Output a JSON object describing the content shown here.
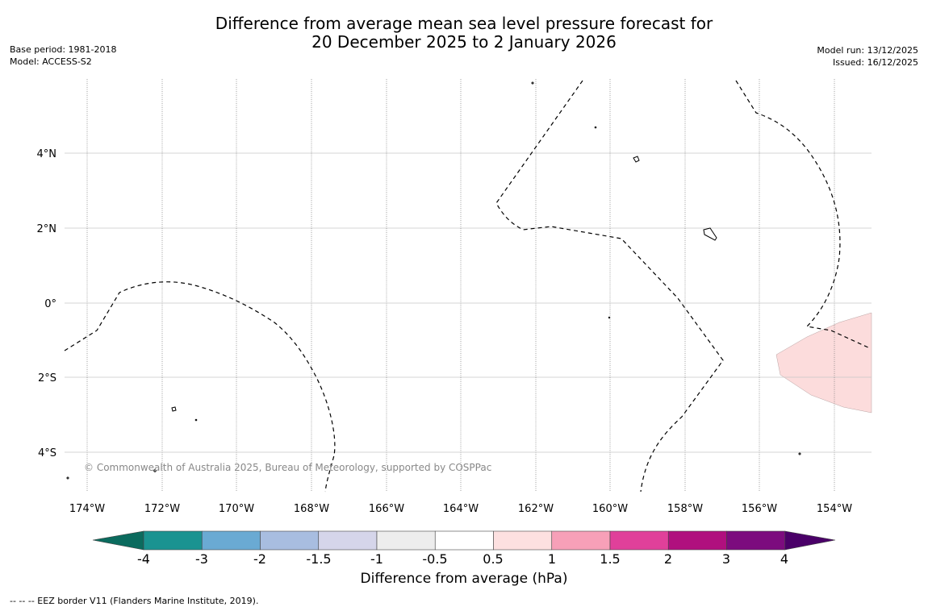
{
  "title": {
    "line1": "Difference from average mean sea level pressure forecast for",
    "line2": "20 December 2025 to 2 January 2026"
  },
  "meta": {
    "base_period": "Base period: 1981-2018",
    "model": "Model: ACCESS-S2",
    "model_run": "Model run: 13/12/2025",
    "issued": "Issued: 16/12/2025"
  },
  "map": {
    "lon_labels": [
      "174°W",
      "172°W",
      "170°W",
      "168°W",
      "166°W",
      "164°W",
      "162°W",
      "160°W",
      "158°W",
      "156°W",
      "154°W"
    ],
    "lat_labels": [
      "4°N",
      "2°N",
      "0°",
      "2°S",
      "4°S"
    ],
    "copyright": "© Commonwealth of Australia 2025, Bureau of Meteorology, supported by COSPPac",
    "anomaly_color": "#fcdcdc",
    "anomaly_region_class": "0.5 to 1 hPa"
  },
  "colorbar": {
    "label": "Difference from average (hPa)",
    "ticks": [
      "-4",
      "-3",
      "-2",
      "-1.5",
      "-1",
      "-0.5",
      "0.5",
      "1",
      "1.5",
      "2",
      "3",
      "4"
    ],
    "colors": [
      "#0b6b5e",
      "#1a9391",
      "#6aaad3",
      "#a8bde0",
      "#d5d5ea",
      "#ededed",
      "#ffffff",
      "#fde0e0",
      "#f7a0b8",
      "#e0409a",
      "#b0107e",
      "#7c0c7e",
      "#4a0068"
    ]
  },
  "footer": {
    "legend": "--  --  -- EEZ border V11 (Flanders Marine Institute, 2019)."
  }
}
